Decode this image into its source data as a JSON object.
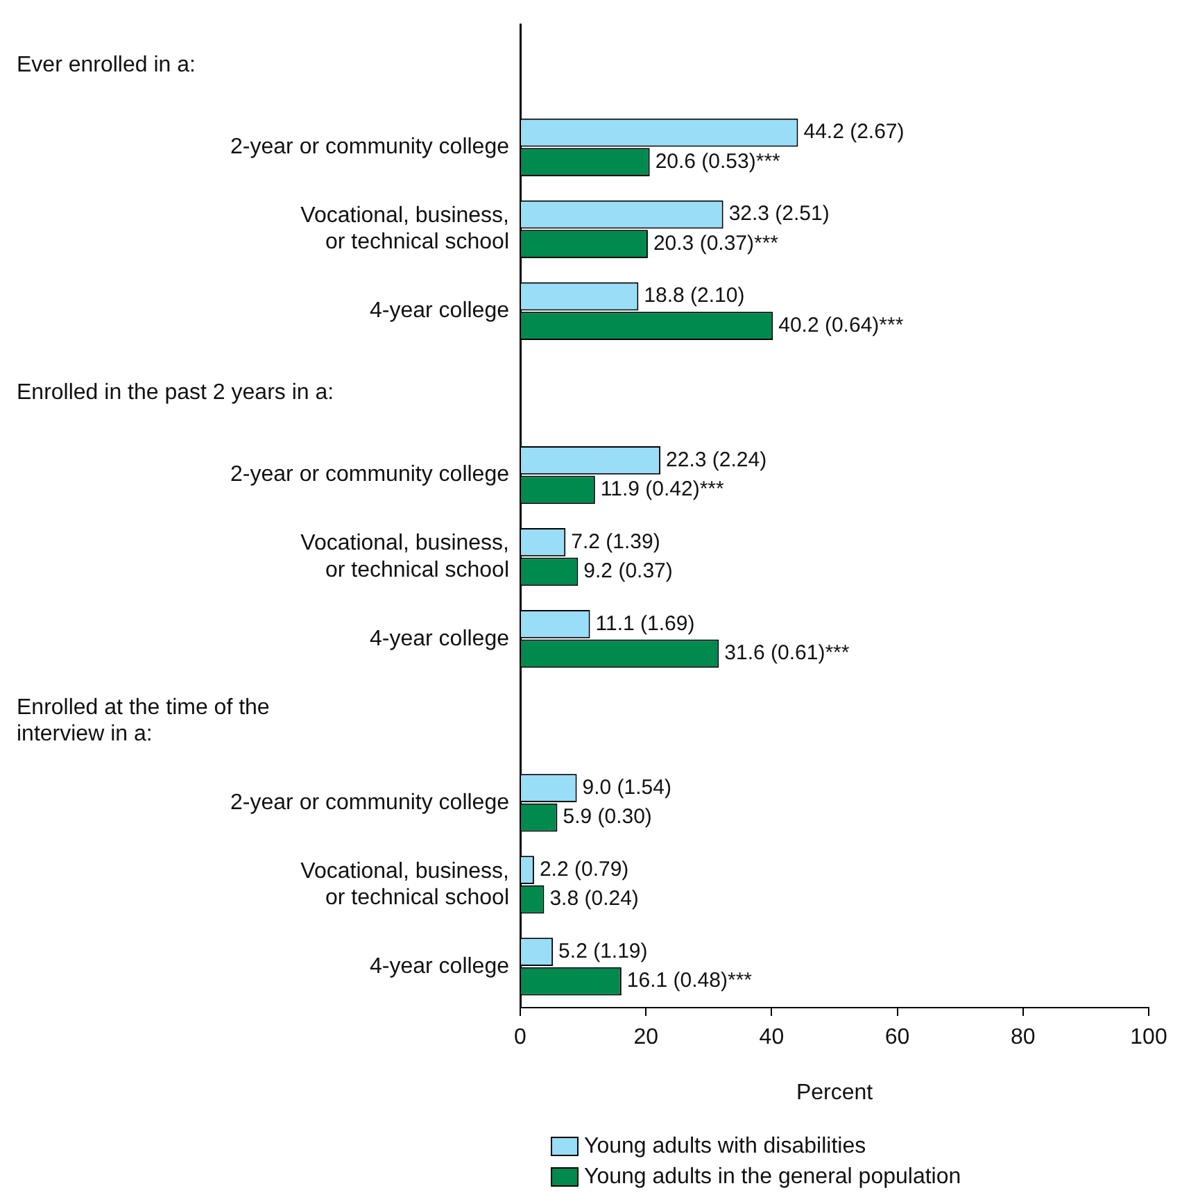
{
  "chart_data": {
    "type": "bar",
    "orientation": "horizontal",
    "xlabel": "Percent",
    "categories": [
      null,
      "2-year or community college",
      "Vocational, business, or technical school",
      "4-year college",
      null,
      "2-year or community college",
      "Vocational, business, or technical school",
      "4-year college",
      null,
      "2-year or community college",
      "Vocational, business, or technical school",
      "4-year college"
    ],
    "series": [
      {
        "name": "Young adults with disabilities",
        "color": "#99ddf7",
        "values": [
          null,
          44.2,
          32.3,
          18.8,
          null,
          22.3,
          7.2,
          11.1,
          null,
          9.0,
          2.2,
          5.2
        ],
        "value_labels": [
          null,
          "44.2 (2.67)",
          "32.3 (2.51)",
          "18.8 (2.10)",
          null,
          "22.3 (2.24)",
          "7.2 (1.39)",
          "11.1 (1.69)",
          null,
          "9.0 (1.54)",
          "2.2 (0.79)",
          "5.2 (1.19)"
        ]
      },
      {
        "name": "Young adults in the general population",
        "color": "#008a4e",
        "values": [
          null,
          20.6,
          20.3,
          40.2,
          null,
          11.9,
          9.2,
          31.6,
          null,
          5.9,
          3.8,
          16.1
        ],
        "value_labels": [
          null,
          "20.6 (0.53)***",
          "20.3 (0.37)***",
          "40.2 (0.64)***",
          null,
          "11.9 (0.42)***",
          "9.2 (0.37)",
          "31.6 (0.61)***",
          null,
          "5.9 (0.30)",
          "3.8 (0.24)",
          "16.1 (0.48)***"
        ]
      }
    ],
    "annotations": [
      "Ever enrolled in a:",
      "Enrolled in the past 2 years in a:",
      "Enrolled at the time of the interview in a:"
    ],
    "xlim": [
      0,
      100
    ],
    "xticks": [
      0,
      20,
      40,
      60,
      80,
      100
    ],
    "grid": false,
    "legend": "bottom"
  }
}
